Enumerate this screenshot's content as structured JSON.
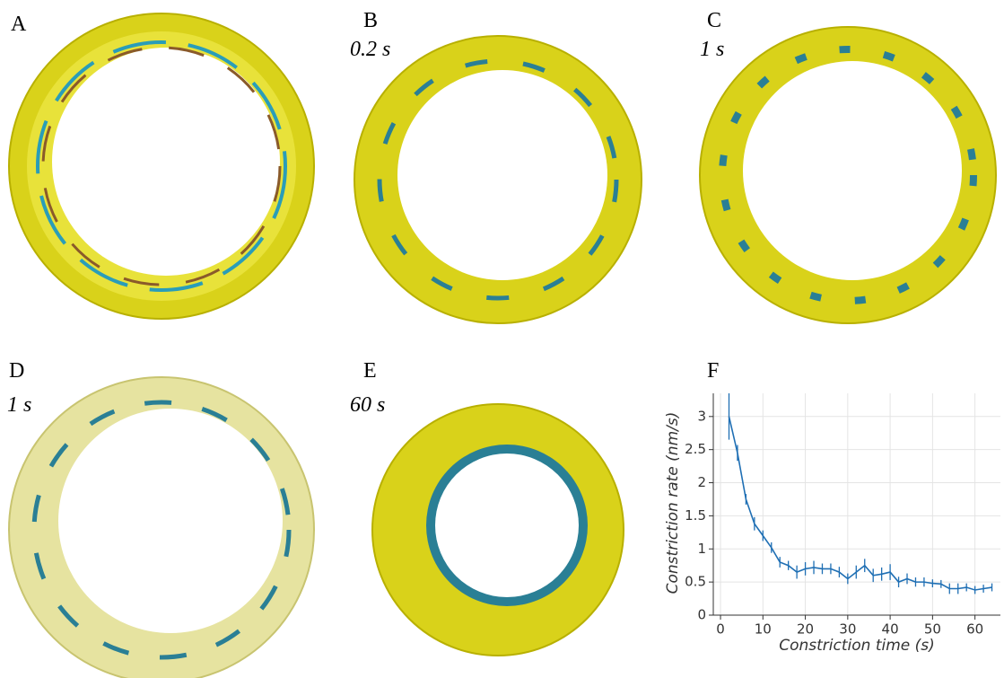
{
  "panels": [
    {
      "label": "A"
    },
    {
      "label": "B",
      "time": "0.2 s"
    },
    {
      "label": "C",
      "time": "1 s"
    },
    {
      "label": "D",
      "time": "1 s"
    },
    {
      "label": "E",
      "time": "60 s"
    },
    {
      "label": "F"
    }
  ],
  "chart_data": {
    "type": "line",
    "x_label": "Constriction time (s)",
    "y_label": "Constriction rate (nm/s)",
    "x": [
      2,
      4,
      6,
      8,
      10,
      12,
      14,
      16,
      18,
      20,
      22,
      24,
      26,
      28,
      30,
      32,
      34,
      36,
      38,
      40,
      42,
      44,
      46,
      48,
      50,
      52,
      54,
      56,
      58,
      60,
      62,
      64
    ],
    "series": [
      {
        "color": "#1f6fb4",
        "values": [
          3.0,
          2.45,
          1.75,
          1.38,
          1.2,
          1.02,
          0.8,
          0.75,
          0.65,
          0.7,
          0.72,
          0.7,
          0.7,
          0.65,
          0.55,
          0.65,
          0.75,
          0.6,
          0.62,
          0.65,
          0.5,
          0.55,
          0.5,
          0.5,
          0.48,
          0.47,
          0.4,
          0.4,
          0.42,
          0.38,
          0.4,
          0.42
        ],
        "errors": [
          0.35,
          0.12,
          0.08,
          0.1,
          0.08,
          0.08,
          0.08,
          0.07,
          0.1,
          0.1,
          0.1,
          0.08,
          0.08,
          0.08,
          0.08,
          0.1,
          0.1,
          0.1,
          0.1,
          0.12,
          0.08,
          0.08,
          0.07,
          0.07,
          0.06,
          0.06,
          0.08,
          0.08,
          0.06,
          0.06,
          0.06,
          0.06
        ]
      }
    ],
    "xlim": [
      -1.7,
      66
    ],
    "ylim": [
      0,
      3.35
    ],
    "xticks": [
      0,
      10,
      20,
      30,
      40,
      50,
      60
    ],
    "yticks": [
      0,
      0.5,
      1,
      1.5,
      2,
      2.5,
      3
    ],
    "grid": true
  }
}
